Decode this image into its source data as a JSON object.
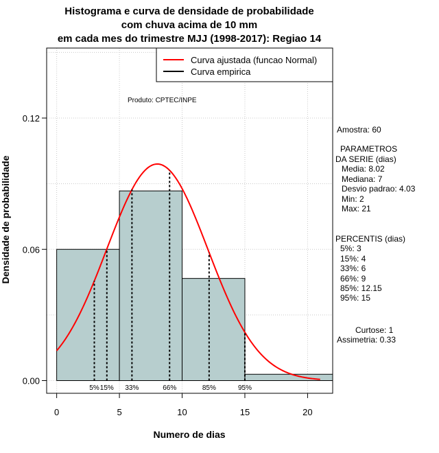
{
  "chart_data": {
    "type": "bar",
    "title_lines": [
      "Histograma e curva de densidade de probabilidade",
      "com chuva acima de 10 mm",
      "em cada mes do trimestre MJJ (1998-2017): Regiao 14"
    ],
    "xlabel": "Numero de dias",
    "ylabel": "Densidade de probabilidade",
    "xlim": [
      -0.8,
      22
    ],
    "ylim": [
      -0.0058,
      0.152
    ],
    "x_ticks": [
      "0",
      "5",
      "10",
      "15",
      "20"
    ],
    "x_tick_values": [
      0,
      5,
      10,
      15,
      20
    ],
    "y_ticks": [
      "0.00",
      "0.06",
      "0.12"
    ],
    "y_tick_values": [
      0.0,
      0.06,
      0.12
    ],
    "grid": true,
    "bins": [
      {
        "from": 0,
        "to": 5,
        "density": 0.06
      },
      {
        "from": 5,
        "to": 10,
        "density": 0.0867
      },
      {
        "from": 10,
        "to": 15,
        "density": 0.0467
      },
      {
        "from": 15,
        "to": 22,
        "density": 0.0029
      }
    ],
    "bar_color": "#b7cece",
    "normal_fit": {
      "mean": 8.02,
      "sd": 4.03,
      "from": 0,
      "to": 21,
      "color": "#ff0000"
    },
    "percentile_lines": [
      {
        "label": "5%",
        "x": 3
      },
      {
        "label": "15%",
        "x": 4
      },
      {
        "label": "33%",
        "x": 6
      },
      {
        "label": "66%",
        "x": 9
      },
      {
        "label": "85%",
        "x": 12.15
      },
      {
        "label": "95%",
        "x": 15
      }
    ],
    "legend": [
      {
        "label": "Curva ajustada (funcao Normal)",
        "color": "#ff0000"
      },
      {
        "label": "Curva empirica",
        "color": "#000000"
      }
    ],
    "legend_position": "top-right",
    "credit": "Produto: CPTEC/INPE"
  },
  "stats": {
    "sample": "Amostra: 60",
    "params_header": [
      "PARAMETROS",
      "DA SERIE (dias)"
    ],
    "params": [
      "Media: 8.02",
      "Mediana: 7",
      "Desvio padrao: 4.03",
      "Min: 2",
      "Max: 21"
    ],
    "percentiles_header": "PERCENTIS (dias)",
    "percentiles": [
      "5%: 3",
      "15%: 4",
      "33%: 6",
      "66%: 9",
      "85%: 12.15",
      "95%: 15"
    ],
    "curtose": "Curtose: 1",
    "assimetria": "Assimetria: 0.33"
  }
}
